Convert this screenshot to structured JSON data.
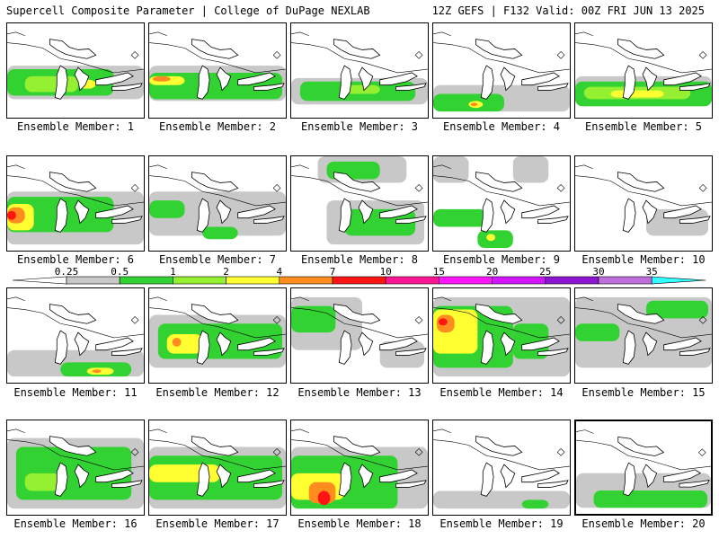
{
  "header": {
    "title_left": "Supercell Composite Parameter | College of DuPage NEXLAB",
    "title_right": "12Z GEFS | F132 Valid: 00Z FRI JUN 13 2025"
  },
  "legend": {
    "ticks": [
      "0.25",
      "0.5",
      "1",
      "2",
      "4",
      "7",
      "10",
      "15",
      "20",
      "25",
      "30",
      "35"
    ],
    "colors": [
      "#ffffff",
      "#c8c8c8",
      "#32d232",
      "#96f032",
      "#ffff32",
      "#ff8c1e",
      "#ff1414",
      "#ff1493",
      "#ff14ff",
      "#d214ff",
      "#8c14d2",
      "#be6edc",
      "#32ffff"
    ]
  },
  "panels": [
    {
      "label": "Ensemble Member: 1"
    },
    {
      "label": "Ensemble Member: 2"
    },
    {
      "label": "Ensemble Member: 3"
    },
    {
      "label": "Ensemble Member: 4"
    },
    {
      "label": "Ensemble Member: 5"
    },
    {
      "label": "Ensemble Member: 6"
    },
    {
      "label": "Ensemble Member: 7"
    },
    {
      "label": "Ensemble Member: 8"
    },
    {
      "label": "Ensemble Member: 9"
    },
    {
      "label": "Ensemble Member: 10"
    },
    {
      "label": "Ensemble Member: 11"
    },
    {
      "label": "Ensemble Member: 12"
    },
    {
      "label": "Ensemble Member: 13"
    },
    {
      "label": "Ensemble Member: 14"
    },
    {
      "label": "Ensemble Member: 15"
    },
    {
      "label": "Ensemble Member: 16"
    },
    {
      "label": "Ensemble Member: 17"
    },
    {
      "label": "Ensemble Member: 18"
    },
    {
      "label": "Ensemble Member: 19"
    },
    {
      "label": "Ensemble Member: 20",
      "selected": true
    }
  ]
}
